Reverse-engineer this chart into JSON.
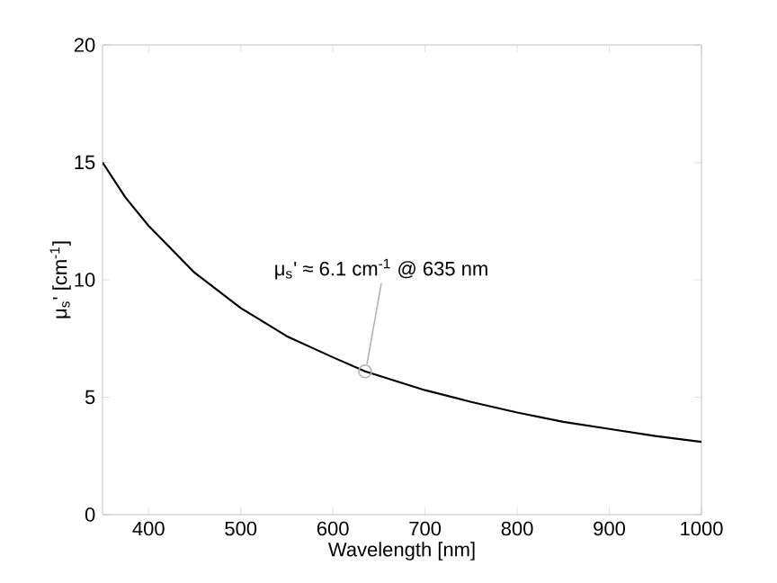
{
  "chart_data": {
    "type": "line",
    "xlabel": "Wavelength [nm]",
    "ylabel": "μ$_{s}$' [cm$^{-1}$]",
    "x": [
      350,
      375,
      400,
      450,
      500,
      550,
      600,
      635,
      700,
      750,
      800,
      850,
      900,
      950,
      1000
    ],
    "series": [
      {
        "color": "#000000",
        "values": [
          15,
          13.5,
          12.3,
          10.3,
          8.8,
          7.6,
          6.7,
          6.1,
          5.3,
          4.8,
          4.35,
          3.95,
          3.65,
          3.35,
          3.1
        ]
      }
    ],
    "xlim": [
      350,
      1000
    ],
    "ylim": [
      0,
      20
    ],
    "xticks": [
      400,
      500,
      600,
      700,
      800,
      900,
      1000
    ],
    "yticks": [
      0,
      5,
      10,
      15,
      20
    ],
    "grid": false,
    "marker": "none",
    "line_style": "solid",
    "annotations": [
      {
        "text": "μ$_{s}$' ≈ 6.1 cm$^{-1}$ @ 635 nm",
        "x": 635,
        "y": 6.1
      }
    ]
  }
}
